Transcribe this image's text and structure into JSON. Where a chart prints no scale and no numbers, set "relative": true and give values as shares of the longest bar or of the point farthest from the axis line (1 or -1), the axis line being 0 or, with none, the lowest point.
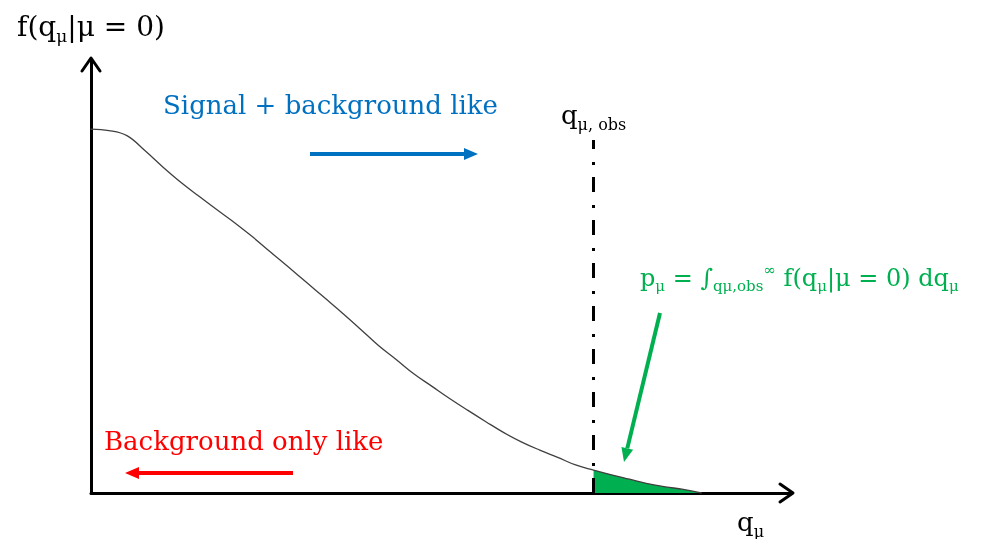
{
  "chart_data": {
    "type": "line",
    "relative": true,
    "xlabel": "q$_{μ}$",
    "ylabel": "f(q$_{μ}$|μ = 0)",
    "marker": "none",
    "categories": [
      null,
      null,
      null,
      null,
      null,
      null,
      null,
      null,
      null,
      null,
      null,
      null,
      null,
      null,
      null,
      null,
      null,
      null,
      null,
      null,
      null,
      null,
      null,
      null,
      null,
      null,
      null,
      null,
      null,
      null,
      null,
      null,
      null,
      null,
      null,
      null,
      null,
      null,
      null,
      null
    ],
    "series": [
      {
        "color": "#404040",
        "values": [
          1,
          0.996,
          0.982,
          0.941,
          0.896,
          0.854,
          0.816,
          0.779,
          0.743,
          0.704,
          0.662,
          0.621,
          0.579,
          0.537,
          0.495,
          0.451,
          0.406,
          0.367,
          0.327,
          0.293,
          0.259,
          0.227,
          0.196,
          0.166,
          0.14,
          0.118,
          0.098,
          0.077,
          0.063,
          0.05,
          0.038,
          0.026,
          0.017,
          0.01,
          0,
          null,
          null,
          null,
          null,
          null
        ]
      },
      {
        "type": "area",
        "color": "#00b050",
        "values": [
          null,
          null,
          null,
          null,
          null,
          null,
          null,
          null,
          null,
          null,
          null,
          null,
          null,
          null,
          null,
          null,
          null,
          null,
          null,
          null,
          null,
          null,
          null,
          null,
          null,
          null,
          null,
          null,
          0.063,
          0.05,
          0.038,
          0.026,
          0.017,
          0.01,
          0,
          null,
          null,
          null,
          null,
          null
        ]
      }
    ],
    "annotations": [
      "Signal + background like",
      "q$_{μ, obs}$",
      "p$_{μ}$ = ∫$_{qμ,obs}$$^{∞}$ f(q$_{μ}$|μ = 0) dq$_{μ}$",
      "Background only like"
    ]
  }
}
